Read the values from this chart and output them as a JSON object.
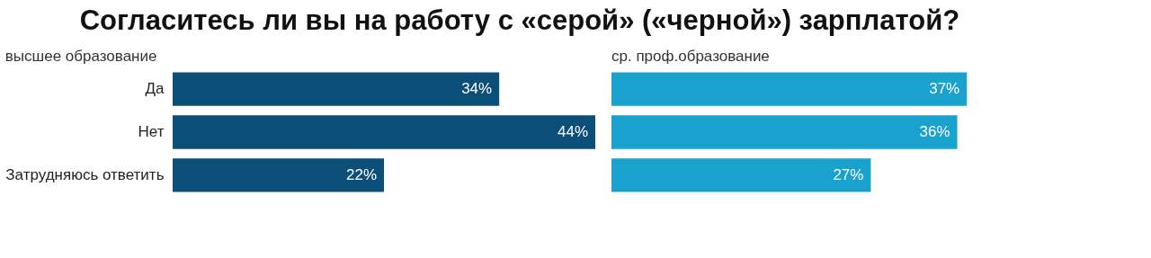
{
  "chart_data": [
    {
      "type": "bar",
      "orientation": "horizontal",
      "title": "Согласитесь ли вы на работу с «серой» («черной») зарплатой?",
      "categories": [
        "Да",
        "Нет",
        "Затрудняюсь ответить"
      ],
      "series": [
        {
          "name": "высшее образование",
          "color": "#0b4f79",
          "values": [
            34,
            44,
            22
          ],
          "value_labels": [
            "34%",
            "44%",
            "22%"
          ]
        }
      ],
      "tick_labels": "y"
    },
    {
      "type": "bar",
      "orientation": "horizontal",
      "categories": [
        null,
        null,
        null
      ],
      "series": [
        {
          "name": "ср. проф.образование",
          "color": "#1aa2cf",
          "values": [
            37,
            36,
            27
          ],
          "value_labels": [
            "37%",
            "36%",
            "27%"
          ]
        }
      ],
      "tick_labels": false
    }
  ]
}
